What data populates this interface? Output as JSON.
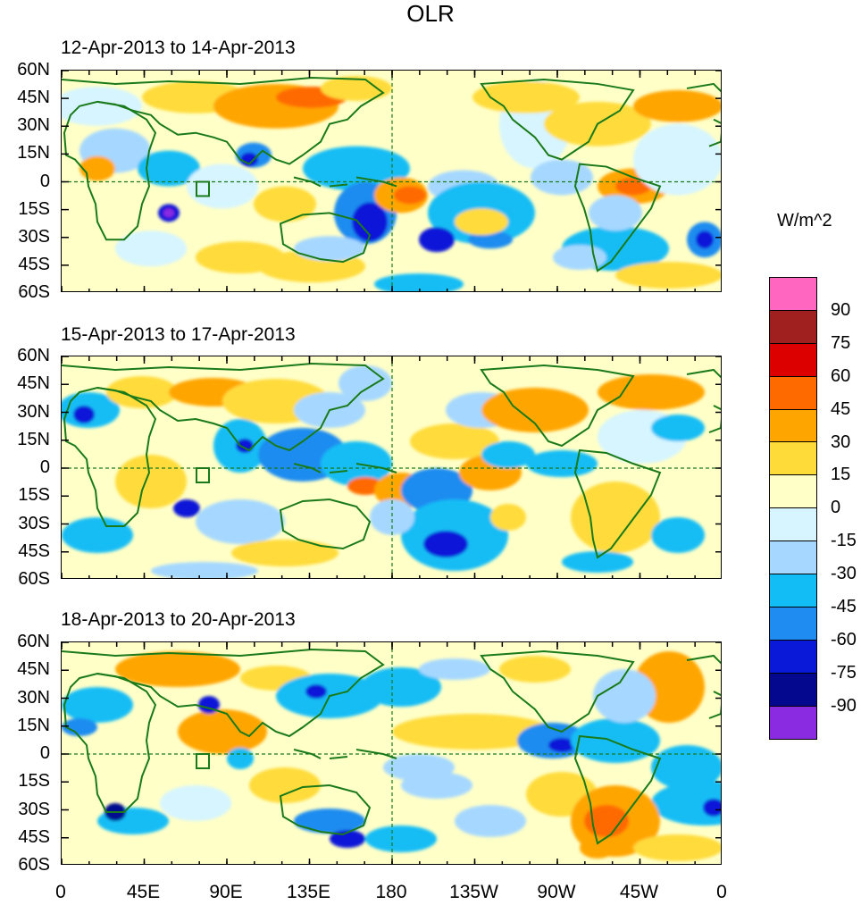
{
  "title": "OLR",
  "panels": [
    {
      "label": "12-Apr-2013 to 14-Apr-2013"
    },
    {
      "label": "15-Apr-2013 to 17-Apr-2013"
    },
    {
      "label": "18-Apr-2013 to 20-Apr-2013"
    }
  ],
  "lat_labels": [
    "60N",
    "45N",
    "30N",
    "15N",
    "0",
    "15S",
    "30S",
    "45S",
    "60S"
  ],
  "lon_labels": [
    "0",
    "45E",
    "90E",
    "135E",
    "180",
    "135W",
    "90W",
    "45W",
    "0"
  ],
  "colorbar": {
    "units": "W/m^2",
    "labels": [
      "90",
      "75",
      "60",
      "45",
      "30",
      "15",
      "0",
      "-15",
      "-30",
      "-45",
      "-60",
      "-75",
      "-90"
    ],
    "colors": [
      "#ff66c0",
      "#a02020",
      "#dd0000",
      "#ff6a00",
      "#ffa500",
      "#ffdb3a",
      "#ffffc8",
      "#d6f5ff",
      "#a6d8ff",
      "#12bdf5",
      "#1e8cf0",
      "#0a18d8",
      "#04088e",
      "#8a2be2"
    ]
  }
}
